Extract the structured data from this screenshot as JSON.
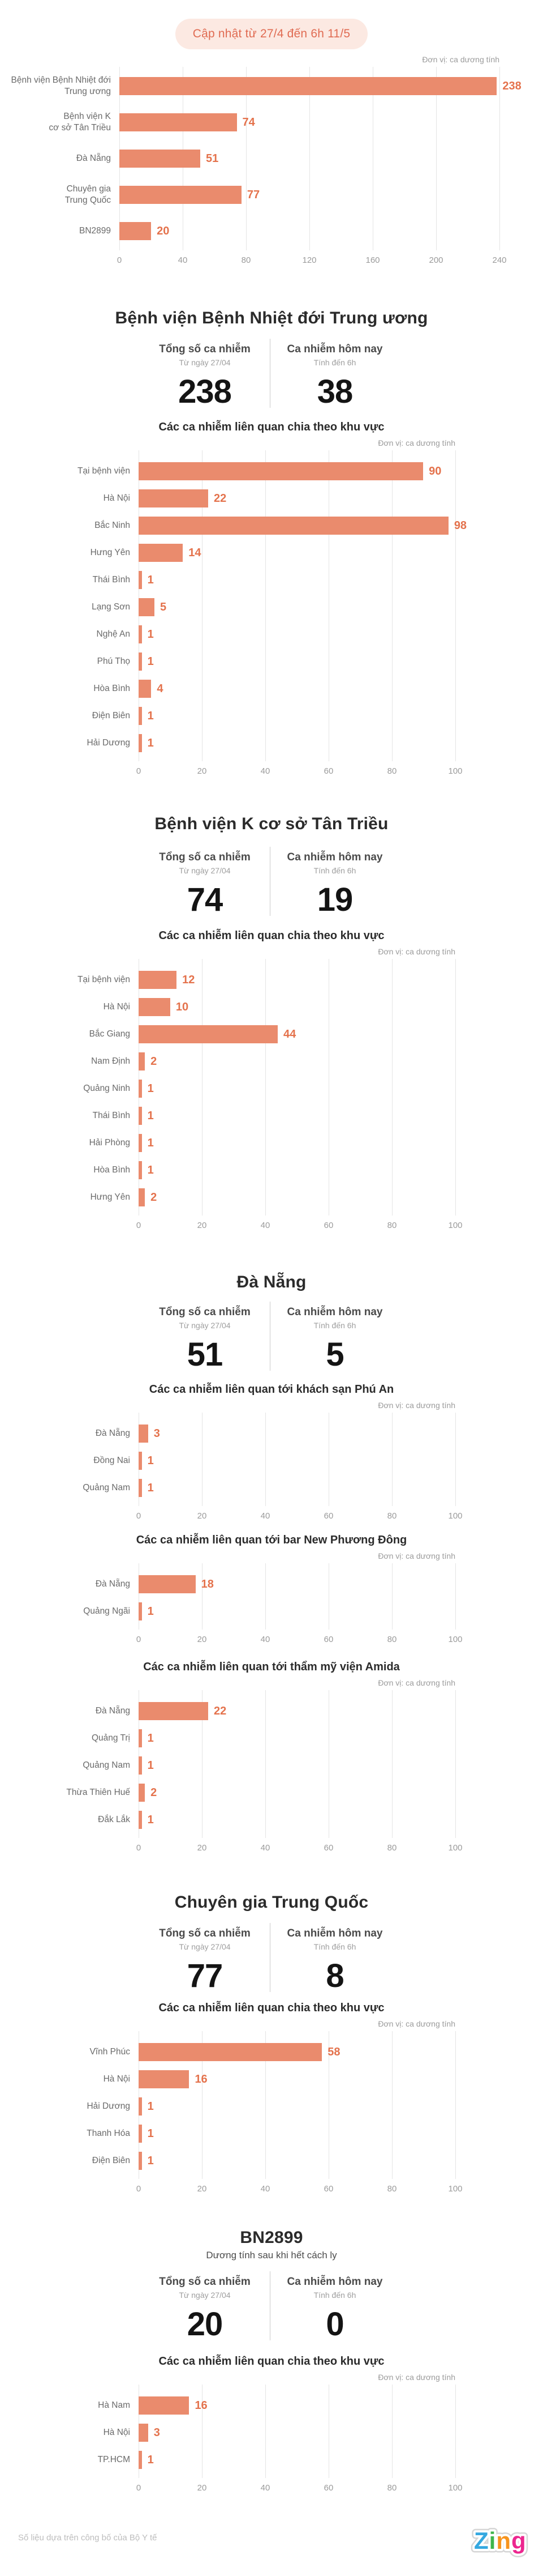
{
  "header": {
    "update_pill": "Cập nhật từ 27/4 đến 6h 11/5"
  },
  "unit_label": "Đơn vị: ca dương tính",
  "stats_labels": {
    "total_label": "Tổng số ca nhiễm",
    "total_sub": "Từ ngày 27/04",
    "today_label": "Ca nhiễm hôm nay",
    "today_sub": "Tính đến 6h"
  },
  "colors": {
    "bar": "#ea8b6d",
    "value_label": "#e4724c",
    "pill_bg": "#fce9e2",
    "pill_text": "#e06b52",
    "title_text": "#2b2b2b",
    "muted_text": "#9b9b9b",
    "category_text": "#6a6a6a",
    "gridline": "#e4e4e4"
  },
  "chart_data": [
    {
      "type": "bar",
      "title": "",
      "unit": "Đơn vị: ca dương tính",
      "categories": [
        "Bệnh viện Bệnh Nhiệt đới\nTrung ương",
        "Bệnh viện K\ncơ sở Tân Triều",
        "Đà Nẵng",
        "Chuyên gia\nTrung Quốc",
        "BN2899"
      ],
      "values": [
        238,
        74,
        51,
        77,
        20
      ],
      "xlim": [
        0,
        240
      ],
      "tick_step": 40,
      "ticks": [
        0,
        40,
        80,
        120,
        160,
        200,
        240
      ],
      "grid": true,
      "orientation": "horizontal"
    },
    {
      "type": "bar",
      "title": "Các ca nhiễm liên quan chia theo khu vực",
      "unit": "Đơn vị: ca dương tính",
      "categories": [
        "Tại bệnh viện",
        "Hà Nội",
        "Bắc Ninh",
        "Hưng Yên",
        "Thái Bình",
        "Lạng Sơn",
        "Nghệ An",
        "Phú Thọ",
        "Hòa Bình",
        "Điện Biên",
        "Hải Dương"
      ],
      "values": [
        90,
        22,
        98,
        14,
        1,
        5,
        1,
        1,
        4,
        1,
        1
      ],
      "xlim": [
        0,
        100
      ],
      "tick_step": 20,
      "ticks": [
        0,
        20,
        40,
        60,
        80,
        100
      ],
      "grid": true,
      "orientation": "horizontal"
    },
    {
      "type": "bar",
      "title": "Các ca nhiễm liên quan chia theo khu vực",
      "unit": "Đơn vị: ca dương tính",
      "categories": [
        "Tại bệnh viện",
        "Hà Nội",
        "Bắc Giang",
        "Nam Định",
        "Quảng Ninh",
        "Thái Bình",
        "Hải Phòng",
        "Hòa Bình",
        "Hưng Yên"
      ],
      "values": [
        12,
        10,
        44,
        2,
        1,
        1,
        1,
        1,
        2
      ],
      "xlim": [
        0,
        100
      ],
      "tick_step": 20,
      "ticks": [
        0,
        20,
        40,
        60,
        80,
        100
      ],
      "grid": true,
      "orientation": "horizontal"
    },
    {
      "type": "bar",
      "title": "Các ca nhiễm liên quan tới khách sạn Phú An",
      "unit": "Đơn vị: ca dương tính",
      "categories": [
        "Đà Nẵng",
        "Đồng Nai",
        "Quảng Nam"
      ],
      "values": [
        3,
        1,
        1
      ],
      "xlim": [
        0,
        100
      ],
      "tick_step": 20,
      "ticks": [
        0,
        20,
        40,
        60,
        80,
        100
      ],
      "grid": true,
      "orientation": "horizontal"
    },
    {
      "type": "bar",
      "title": "Các ca nhiễm liên quan tới bar New Phương Đông",
      "unit": "Đơn vị: ca dương tính",
      "categories": [
        "Đà Nẵng",
        "Quảng Ngãi"
      ],
      "values": [
        18,
        1
      ],
      "xlim": [
        0,
        100
      ],
      "tick_step": 20,
      "ticks": [
        0,
        20,
        40,
        60,
        80,
        100
      ],
      "grid": true,
      "orientation": "horizontal"
    },
    {
      "type": "bar",
      "title": "Các ca nhiễm liên quan tới thẩm mỹ viện Amida",
      "unit": "Đơn vị: ca dương tính",
      "categories": [
        "Đà Nẵng",
        "Quảng Trị",
        "Quảng Nam",
        "Thừa Thiên Huế",
        "Đắk Lắk"
      ],
      "values": [
        22,
        1,
        1,
        2,
        1
      ],
      "xlim": [
        0,
        100
      ],
      "tick_step": 20,
      "ticks": [
        0,
        20,
        40,
        60,
        80,
        100
      ],
      "grid": true,
      "orientation": "horizontal"
    },
    {
      "type": "bar",
      "title": "Các ca nhiễm liên quan chia theo khu vực",
      "unit": "Đơn vị: ca dương tính",
      "categories": [
        "Vĩnh Phúc",
        "Hà Nội",
        "Hải Dương",
        "Thanh Hóa",
        "Điện Biên"
      ],
      "values": [
        58,
        16,
        1,
        1,
        1
      ],
      "xlim": [
        0,
        100
      ],
      "tick_step": 20,
      "ticks": [
        0,
        20,
        40,
        60,
        80,
        100
      ],
      "grid": true,
      "orientation": "horizontal"
    },
    {
      "type": "bar",
      "title": "Các ca nhiễm liên quan chia theo khu vực",
      "unit": "Đơn vị: ca dương tính",
      "categories": [
        "Hà Nam",
        "Hà Nội",
        "TP.HCM"
      ],
      "values": [
        16,
        3,
        1
      ],
      "xlim": [
        0,
        100
      ],
      "tick_step": 20,
      "ticks": [
        0,
        20,
        40,
        60,
        80,
        100
      ],
      "grid": true,
      "orientation": "horizontal"
    }
  ],
  "sections": [
    {
      "title": "Bệnh viện Bệnh Nhiệt đới Trung ương",
      "subtitle": "",
      "total": "238",
      "today": "38",
      "chart_ids": [
        1
      ]
    },
    {
      "title": "Bệnh viện K cơ sở Tân Triều",
      "subtitle": "",
      "total": "74",
      "today": "19",
      "chart_ids": [
        2
      ]
    },
    {
      "title": "Đà Nẵng",
      "subtitle": "",
      "total": "51",
      "today": "5",
      "chart_ids": [
        3,
        4,
        5
      ]
    },
    {
      "title": "Chuyên gia Trung Quốc",
      "subtitle": "",
      "total": "77",
      "today": "8",
      "chart_ids": [
        6
      ]
    },
    {
      "title": "BN2899",
      "subtitle": "Dương tính sau khi hết cách ly",
      "total": "20",
      "today": "0",
      "chart_ids": [
        7
      ]
    }
  ],
  "footer": {
    "source_note": "Số liệu dựa trên công bố của Bộ Y tế"
  },
  "logo": {
    "name": "Zing",
    "letters": [
      {
        "char": "Z",
        "color": "#35a8e0"
      },
      {
        "char": "i",
        "color": "#3fb54a"
      },
      {
        "char": "n",
        "color": "#f7941d"
      },
      {
        "char": "g",
        "color": "#ec268f"
      }
    ]
  }
}
